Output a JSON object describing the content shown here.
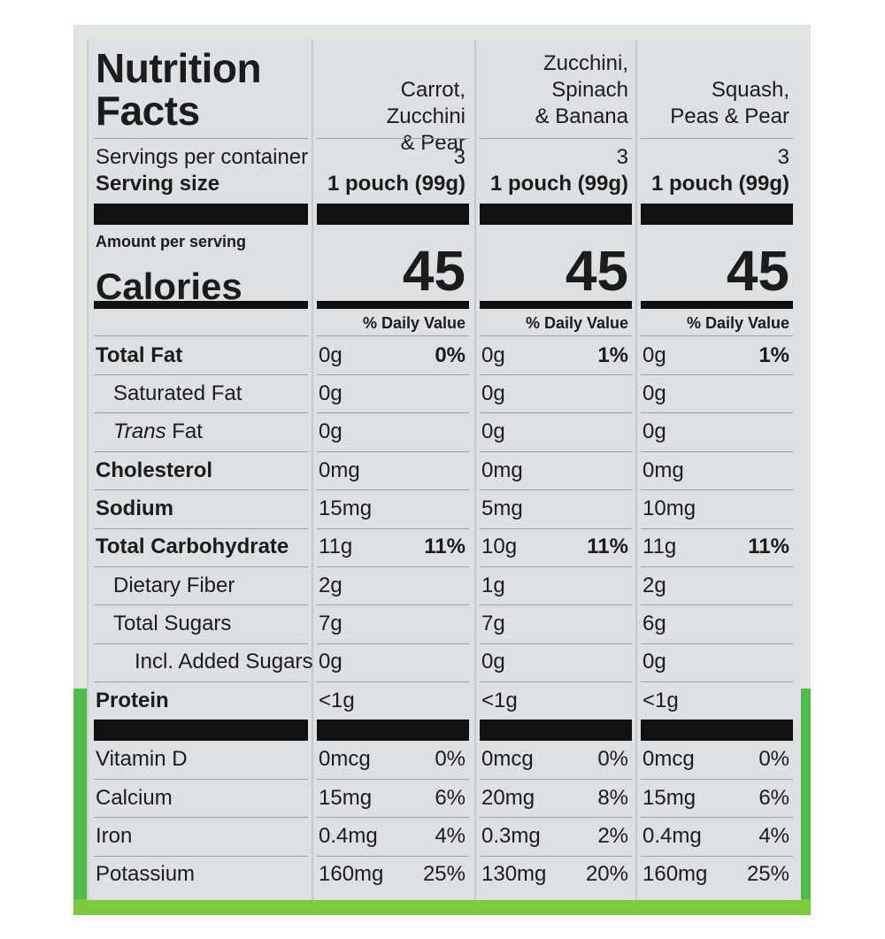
{
  "title": "Nutrition Facts",
  "labels": {
    "servings": "Servings per container",
    "serving_size": "Serving size",
    "amount_per_serving": "Amount per serving",
    "calories": "Calories",
    "daily_value": "% Daily Value"
  },
  "nutrient_labels": {
    "total_fat": "Total Fat",
    "saturated_fat": "Saturated Fat",
    "trans_italic": "Trans",
    "trans_rest": " Fat",
    "cholesterol": "Cholesterol",
    "sodium": "Sodium",
    "total_carb": "Total Carbohydrate",
    "dietary_fiber": "Dietary Fiber",
    "total_sugars": "Total Sugars",
    "added_sugars": "Incl. Added Sugars",
    "protein": "Protein",
    "vitamin_d": "Vitamin D",
    "calcium": "Calcium",
    "iron": "Iron",
    "potassium": "Potassium"
  },
  "products": [
    {
      "name_lines": [
        "Carrot, Zucchini",
        "& Pear"
      ],
      "servings": "3",
      "serving_size": "1 pouch (99g)",
      "calories": "45",
      "total_fat": "0g",
      "total_fat_dv": "0%",
      "saturated_fat": "0g",
      "trans_fat": "0g",
      "cholesterol": "0mg",
      "sodium": "15mg",
      "total_carb": "11g",
      "total_carb_dv": "11%",
      "dietary_fiber": "2g",
      "total_sugars": "7g",
      "added_sugars": "0g",
      "protein": "<1g",
      "vitamin_d": "0mcg",
      "vitamin_d_dv": "0%",
      "calcium": "15mg",
      "calcium_dv": "6%",
      "iron": "0.4mg",
      "iron_dv": "4%",
      "potassium": "160mg",
      "potassium_dv": "25%"
    },
    {
      "name_lines": [
        "Zucchini,",
        "Spinach",
        "& Banana"
      ],
      "servings": "3",
      "serving_size": "1 pouch (99g)",
      "calories": "45",
      "total_fat": "0g",
      "total_fat_dv": "1%",
      "saturated_fat": "0g",
      "trans_fat": "0g",
      "cholesterol": "0mg",
      "sodium": "5mg",
      "total_carb": "10g",
      "total_carb_dv": "11%",
      "dietary_fiber": "1g",
      "total_sugars": "7g",
      "added_sugars": "0g",
      "protein": "<1g",
      "vitamin_d": "0mcg",
      "vitamin_d_dv": "0%",
      "calcium": "20mg",
      "calcium_dv": "8%",
      "iron": "0.3mg",
      "iron_dv": "2%",
      "potassium": "130mg",
      "potassium_dv": "20%"
    },
    {
      "name_lines": [
        "Squash,",
        "Peas & Pear"
      ],
      "servings": "3",
      "serving_size": "1 pouch (99g)",
      "calories": "45",
      "total_fat": "0g",
      "total_fat_dv": "1%",
      "saturated_fat": "0g",
      "trans_fat": "0g",
      "cholesterol": "0mg",
      "sodium": "10mg",
      "total_carb": "11g",
      "total_carb_dv": "11%",
      "dietary_fiber": "2g",
      "total_sugars": "6g",
      "added_sugars": "0g",
      "protein": "<1g",
      "vitamin_d": "0mcg",
      "vitamin_d_dv": "0%",
      "calcium": "15mg",
      "calcium_dv": "6%",
      "iron": "0.4mg",
      "iron_dv": "4%",
      "potassium": "160mg",
      "potassium_dv": "25%"
    }
  ]
}
